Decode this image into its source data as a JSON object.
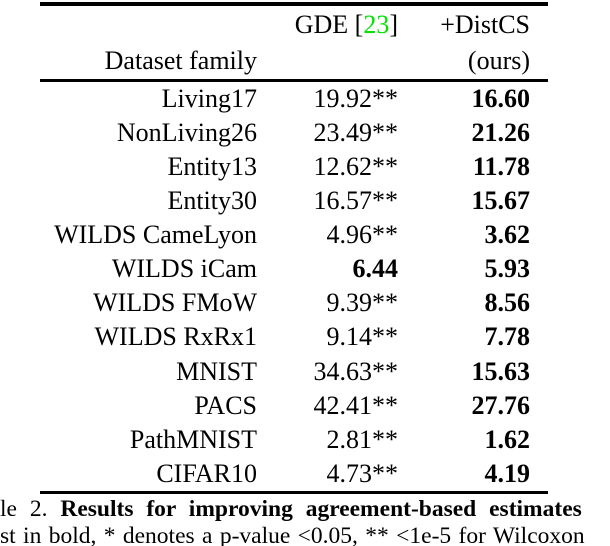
{
  "table": {
    "header": {
      "gde_prefix": "GDE [",
      "gde_citation": "23",
      "gde_suffix": "]",
      "distcs_label": "+DistCS",
      "dataset_family_label": "Dataset family",
      "ours_label": "(ours)"
    },
    "rows": [
      {
        "dataset": "Living17",
        "gde": "19.92**",
        "gde_bold": false,
        "ours": "16.60"
      },
      {
        "dataset": "NonLiving26",
        "gde": "23.49**",
        "gde_bold": false,
        "ours": "21.26"
      },
      {
        "dataset": "Entity13",
        "gde": "12.62**",
        "gde_bold": false,
        "ours": "11.78"
      },
      {
        "dataset": "Entity30",
        "gde": "16.57**",
        "gde_bold": false,
        "ours": "15.67"
      },
      {
        "dataset": "WILDS CameLyon",
        "gde": "4.96**",
        "gde_bold": false,
        "ours": "3.62"
      },
      {
        "dataset": "WILDS iCam",
        "gde": "6.44",
        "gde_bold": true,
        "ours": "5.93"
      },
      {
        "dataset": "WILDS FMoW",
        "gde": "9.39**",
        "gde_bold": false,
        "ours": "8.56"
      },
      {
        "dataset": "WILDS RxRx1",
        "gde": "9.14**",
        "gde_bold": false,
        "ours": "7.78"
      },
      {
        "dataset": "MNIST",
        "gde": "34.63**",
        "gde_bold": false,
        "ours": "15.63"
      },
      {
        "dataset": "PACS",
        "gde": "42.41**",
        "gde_bold": false,
        "ours": "27.76"
      },
      {
        "dataset": "PathMNIST",
        "gde": "2.81**",
        "gde_bold": false,
        "ours": "1.62"
      },
      {
        "dataset": "CIFAR10",
        "gde": "4.73**",
        "gde_bold": false,
        "ours": "4.19"
      }
    ]
  },
  "caption": {
    "line1_prefix": "le 2.",
    "line1_bold": "Results for improving agreement-based estimates",
    "line2": "st in bold, * denotes a p-value <0.05, ** <1e-5 for Wilcoxon"
  },
  "colors": {
    "citation_green": "#00e400"
  }
}
